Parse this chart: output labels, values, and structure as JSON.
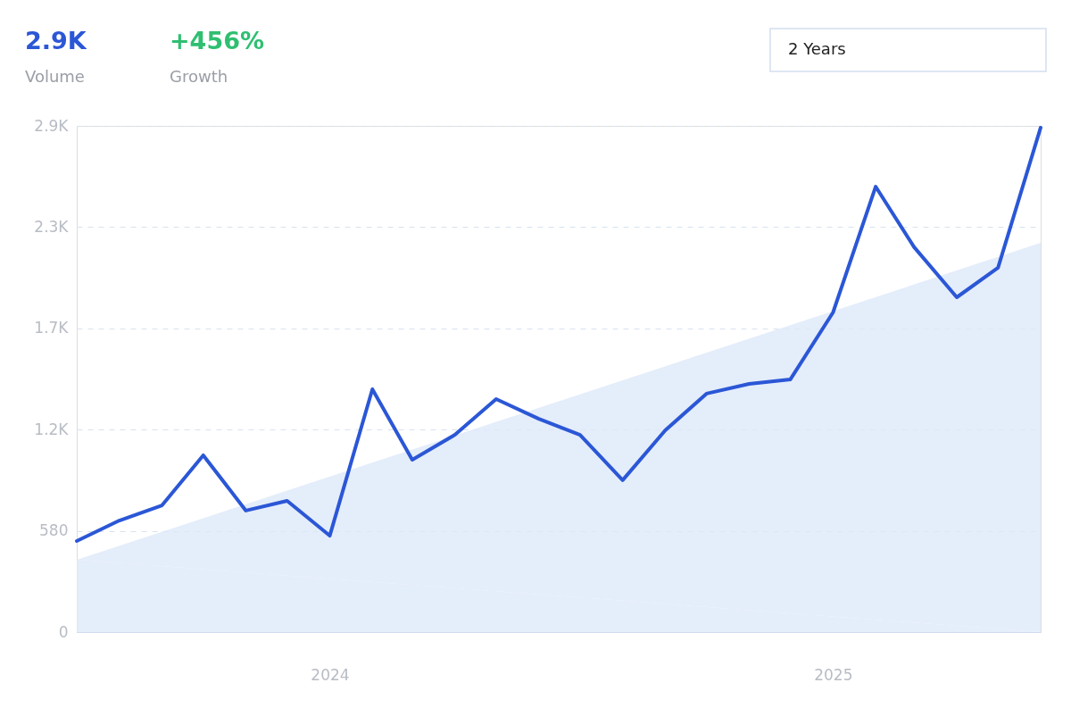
{
  "chart_data": {
    "type": "line",
    "annotations": [
      "2.9K",
      "Volume",
      "+456%",
      "Growth",
      "2 Years"
    ],
    "series": [
      {
        "type": "area",
        "color": "#dde9f9",
        "x": [
          "2023-07",
          "2025-06"
        ],
        "values": [
          414,
          2230
        ]
      },
      {
        "color": "#2b57d6",
        "x": [
          "2023-07",
          "2023-08",
          "2023-09",
          "2023-10",
          "2023-11",
          "2023-12",
          "2024-01",
          "2024-02",
          "2024-03",
          "2024-04",
          "2024-05",
          "2024-06",
          "2024-07",
          "2024-08",
          "2024-09",
          "2024-10",
          "2024-11",
          "2024-12",
          "2025-01",
          "2025-02",
          "2025-03",
          "2025-04",
          "2025-05",
          "2025-06"
        ],
        "values": [
          522,
          639,
          726,
          1013,
          696,
          752,
          552,
          1391,
          987,
          1130,
          1335,
          1222,
          1130,
          870,
          1156,
          1366,
          1422,
          1448,
          1831,
          2552,
          2205,
          1918,
          2087,
          2890
        ]
      }
    ],
    "xlim": [
      "2023-07",
      "2025-06"
    ],
    "xticks": [
      {
        "value": "2024-01",
        "label": "2024"
      },
      {
        "value": "2025-01",
        "label": "2025"
      }
    ],
    "ylim": [
      0,
      2900
    ],
    "yticks": [
      0,
      580,
      {
        "value": 1160,
        "label": "1.2K"
      },
      {
        "value": 1740,
        "label": "1.7K"
      },
      {
        "value": 2320,
        "label": "2.3K"
      },
      {
        "value": 2900,
        "label": "2.9K"
      }
    ],
    "grid": "y",
    "line_style": "solid",
    "marker": "none"
  }
}
